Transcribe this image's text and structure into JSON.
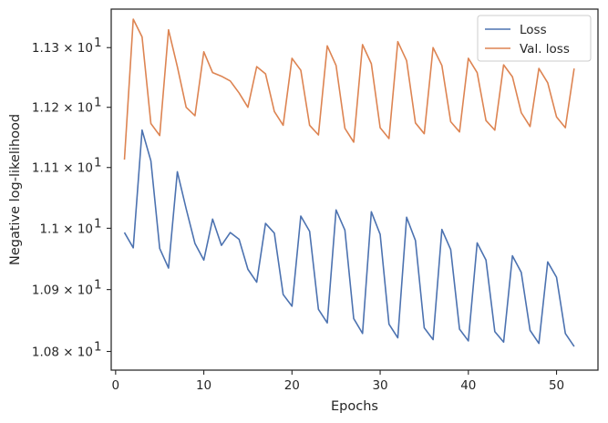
{
  "chart_data": {
    "type": "line",
    "title": "",
    "xlabel": "Epochs",
    "ylabel": "Negative log-likelihood",
    "yscale": "log",
    "grid": false,
    "legend_position": "top-right",
    "xlim": [
      -0.5,
      54.7
    ],
    "ylim": [
      10.77,
      11.365
    ],
    "x_ticks": [
      0,
      10,
      20,
      30,
      40,
      50
    ],
    "x_tick_labels": [
      "0",
      "10",
      "20",
      "30",
      "40",
      "50"
    ],
    "y_ticks": [
      10.8,
      10.9,
      11.0,
      11.1,
      11.2,
      11.3
    ],
    "y_tick_labels": [
      "1.08 × 10",
      "1.09 × 10",
      "1.1 × 10",
      "1.11 × 10",
      "1.12 × 10",
      "1.13 × 10"
    ],
    "y_tick_exponent": "1",
    "x": [
      1,
      2,
      3,
      4,
      5,
      6,
      7,
      8,
      9,
      10,
      11,
      12,
      13,
      14,
      15,
      16,
      17,
      18,
      19,
      20,
      21,
      22,
      23,
      24,
      25,
      26,
      27,
      28,
      29,
      30,
      31,
      32,
      33,
      34,
      35,
      36,
      37,
      38,
      39,
      40,
      41,
      42,
      43,
      44,
      45,
      46,
      47,
      48,
      49,
      50,
      51,
      52
    ],
    "series": [
      {
        "name": "Loss",
        "color": "#4c72b0",
        "values": [
          10.993,
          10.968,
          11.162,
          11.111,
          10.967,
          10.935,
          11.093,
          11.032,
          10.975,
          10.948,
          11.015,
          10.972,
          10.993,
          10.982,
          10.933,
          10.912,
          11.008,
          10.992,
          10.892,
          10.873,
          11.02,
          10.995,
          10.868,
          10.846,
          11.03,
          10.997,
          10.853,
          10.829,
          11.027,
          10.99,
          10.844,
          10.822,
          11.018,
          10.98,
          10.838,
          10.819,
          10.998,
          10.965,
          10.836,
          10.817,
          10.976,
          10.948,
          10.832,
          10.815,
          10.955,
          10.928,
          10.834,
          10.813,
          10.945,
          10.92,
          10.829,
          10.808
        ]
      },
      {
        "name": "Val. loss",
        "color": "#dd8452",
        "values": [
          11.113,
          11.348,
          11.318,
          11.173,
          11.153,
          11.33,
          11.268,
          11.2,
          11.186,
          11.293,
          11.258,
          11.252,
          11.244,
          11.224,
          11.2,
          11.268,
          11.256,
          11.193,
          11.17,
          11.282,
          11.262,
          11.17,
          11.154,
          11.303,
          11.27,
          11.165,
          11.142,
          11.305,
          11.273,
          11.166,
          11.148,
          11.31,
          11.278,
          11.174,
          11.156,
          11.3,
          11.27,
          11.176,
          11.159,
          11.282,
          11.258,
          11.178,
          11.162,
          11.271,
          11.251,
          11.191,
          11.168,
          11.265,
          11.241,
          11.184,
          11.166,
          11.265
        ]
      }
    ]
  }
}
